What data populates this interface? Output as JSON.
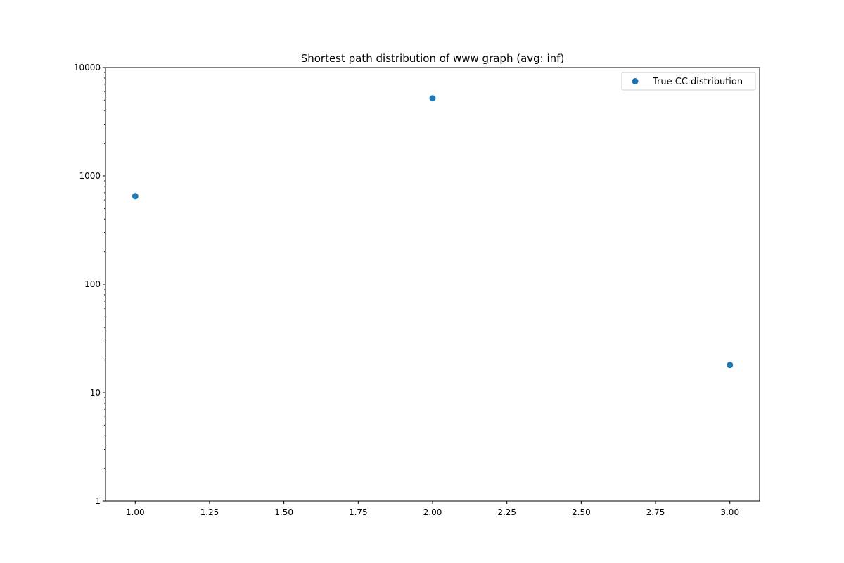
{
  "chart_data": {
    "type": "scatter",
    "title": "Shortest path distribution of www graph (avg: inf)",
    "xlabel": "",
    "ylabel": "",
    "xlim": [
      0.9,
      3.1
    ],
    "ylim": [
      1,
      10000
    ],
    "yscale": "log",
    "grid": false,
    "legend_position": "top-right",
    "x_ticks": [
      1.0,
      1.25,
      1.5,
      1.75,
      2.0,
      2.25,
      2.5,
      2.75,
      3.0
    ],
    "x_tick_labels": [
      "1.00",
      "1.25",
      "1.50",
      "1.75",
      "2.00",
      "2.25",
      "2.50",
      "2.75",
      "3.00"
    ],
    "y_ticks": [
      1,
      10,
      100,
      1000,
      10000
    ],
    "y_tick_labels": [
      "1",
      "10",
      "100",
      "1000",
      "10000"
    ],
    "series": [
      {
        "name": "True CC distribution",
        "color": "#1f77b4",
        "x": [
          1,
          2,
          3
        ],
        "y": [
          650,
          5200,
          18
        ]
      }
    ]
  }
}
